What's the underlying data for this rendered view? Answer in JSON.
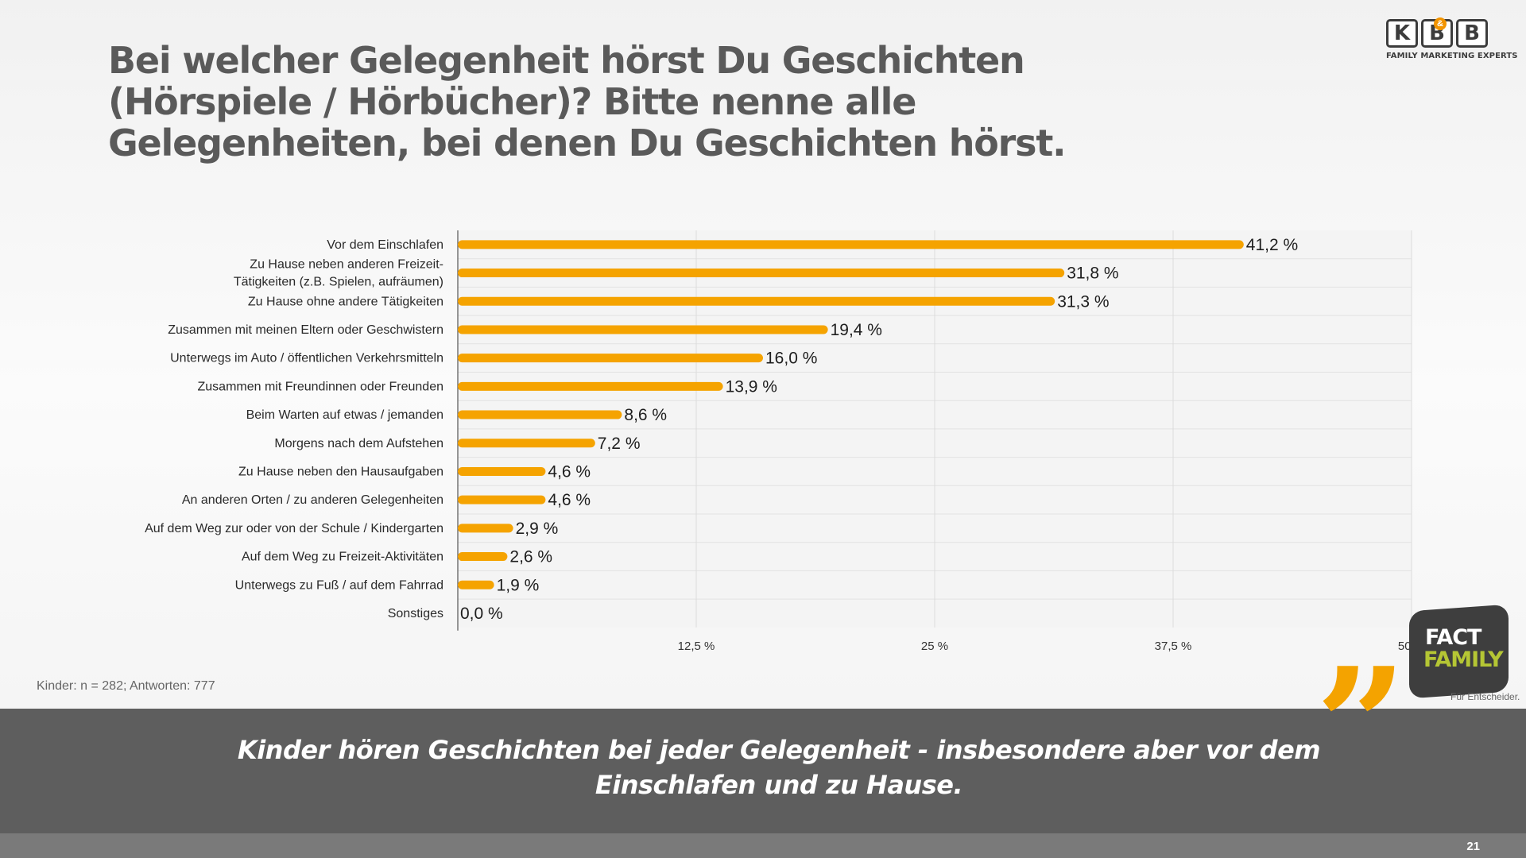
{
  "slide": {
    "title": "Bei welcher Gelegenheit hörst Du Geschichten (Hörspiele / Hörbücher)? Bitte nenne alle Gelegenheiten, bei denen Du Geschichten hörst.",
    "sample_note": "Kinder: n = 282; Antworten: 777",
    "conclusion": "Kinder hören Geschichten bei jeder Gelegenheit - insbesondere aber vor dem Einschlafen und zu Hause.",
    "page_number": "21"
  },
  "logo": {
    "letters": [
      "K",
      "B",
      "B"
    ],
    "ampersand": "&",
    "tagline": "FAMILY MARKETING EXPERTS"
  },
  "badge": {
    "line1": "FACT",
    "line2": "FAMILY",
    "subtitle": "Für Entscheider."
  },
  "quote_mark": "”",
  "colors": {
    "bar": "#f5a300",
    "title": "#5a5a5a",
    "banner": "#5e5e5e",
    "accent_green": "#b5c634"
  },
  "chart_data": {
    "type": "bar",
    "orientation": "horizontal",
    "categories": [
      "Vor dem Einschlafen",
      "Zu Hause neben anderen Freizeit-\nTätigkeiten (z.B. Spielen, aufräumen)",
      "Zu Hause ohne andere Tätigkeiten",
      "Zusammen mit meinen Eltern oder Geschwistern",
      "Unterwegs im Auto / öffentlichen Verkehrsmitteln",
      "Zusammen mit Freundinnen oder Freunden",
      "Beim Warten auf etwas / jemanden",
      "Morgens nach dem Aufstehen",
      "Zu Hause neben den Hausaufgaben",
      "An anderen Orten / zu anderen Gelegenheiten",
      "Auf dem Weg zur oder von der Schule / Kindergarten",
      "Auf dem Weg zu Freizeit-Aktivitäten",
      "Unterwegs zu Fuß / auf dem Fahrrad",
      "Sonstiges"
    ],
    "values": [
      41.2,
      31.8,
      31.3,
      19.4,
      16.0,
      13.9,
      8.6,
      7.2,
      4.6,
      4.6,
      2.9,
      2.6,
      1.9,
      0.0
    ],
    "value_labels": [
      "41,2 %",
      "31,8 %",
      "31,3 %",
      "19,4 %",
      "16,0 %",
      "13,9 %",
      "8,6 %",
      "7,2 %",
      "4,6 %",
      "4,6 %",
      "2,9 %",
      "2,6 %",
      "1,9 %",
      "0,0 %"
    ],
    "xlim": [
      0,
      50
    ],
    "xticks": [
      12.5,
      25,
      37.5,
      50
    ],
    "xtick_labels": [
      "12,5 %",
      "25 %",
      "37,5 %",
      "50 %"
    ],
    "grid": true,
    "legend": "none"
  }
}
